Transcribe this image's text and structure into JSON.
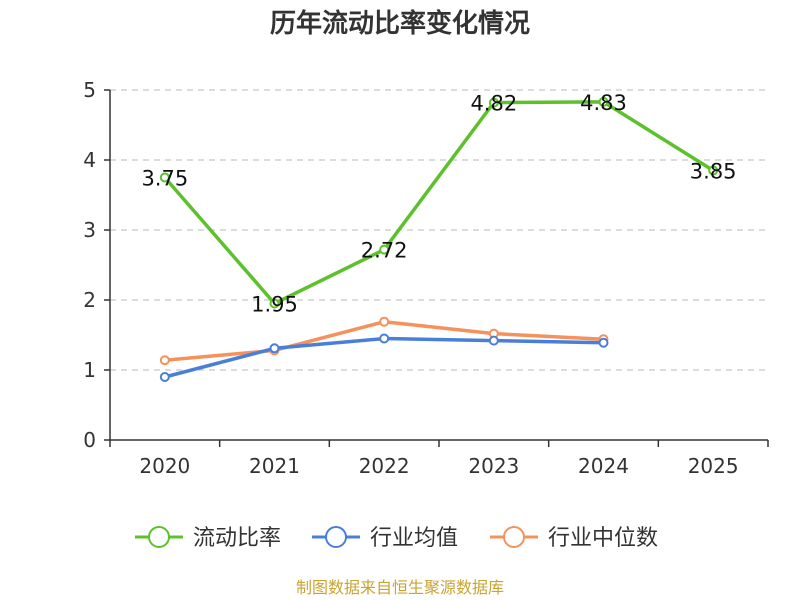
{
  "chart_data": {
    "type": "line",
    "title": "历年流动比率变化情况",
    "categories": [
      "2020",
      "2021",
      "2022",
      "2023",
      "2024",
      "2025"
    ],
    "ylim": [
      0,
      5
    ],
    "yticks": [
      "0",
      "1",
      "2",
      "3",
      "4",
      "5"
    ],
    "grid": true,
    "legend_position": "bottom",
    "series": [
      {
        "name": "流动比率",
        "color": "#5cc12d",
        "values": [
          3.75,
          1.95,
          2.72,
          4.82,
          4.83,
          3.85
        ],
        "labels": [
          "3.75",
          "1.95",
          "2.72",
          "4.82",
          "4.83",
          "3.85"
        ]
      },
      {
        "name": "行业均值",
        "color": "#4a7fd9",
        "values": [
          0.9,
          1.31,
          1.45,
          1.42,
          1.39,
          null
        ]
      },
      {
        "name": "行业中位数",
        "color": "#f5915a",
        "values": [
          1.14,
          1.28,
          1.69,
          1.52,
          1.44,
          null
        ]
      }
    ]
  },
  "source": "制图数据来自恒生聚源数据库"
}
